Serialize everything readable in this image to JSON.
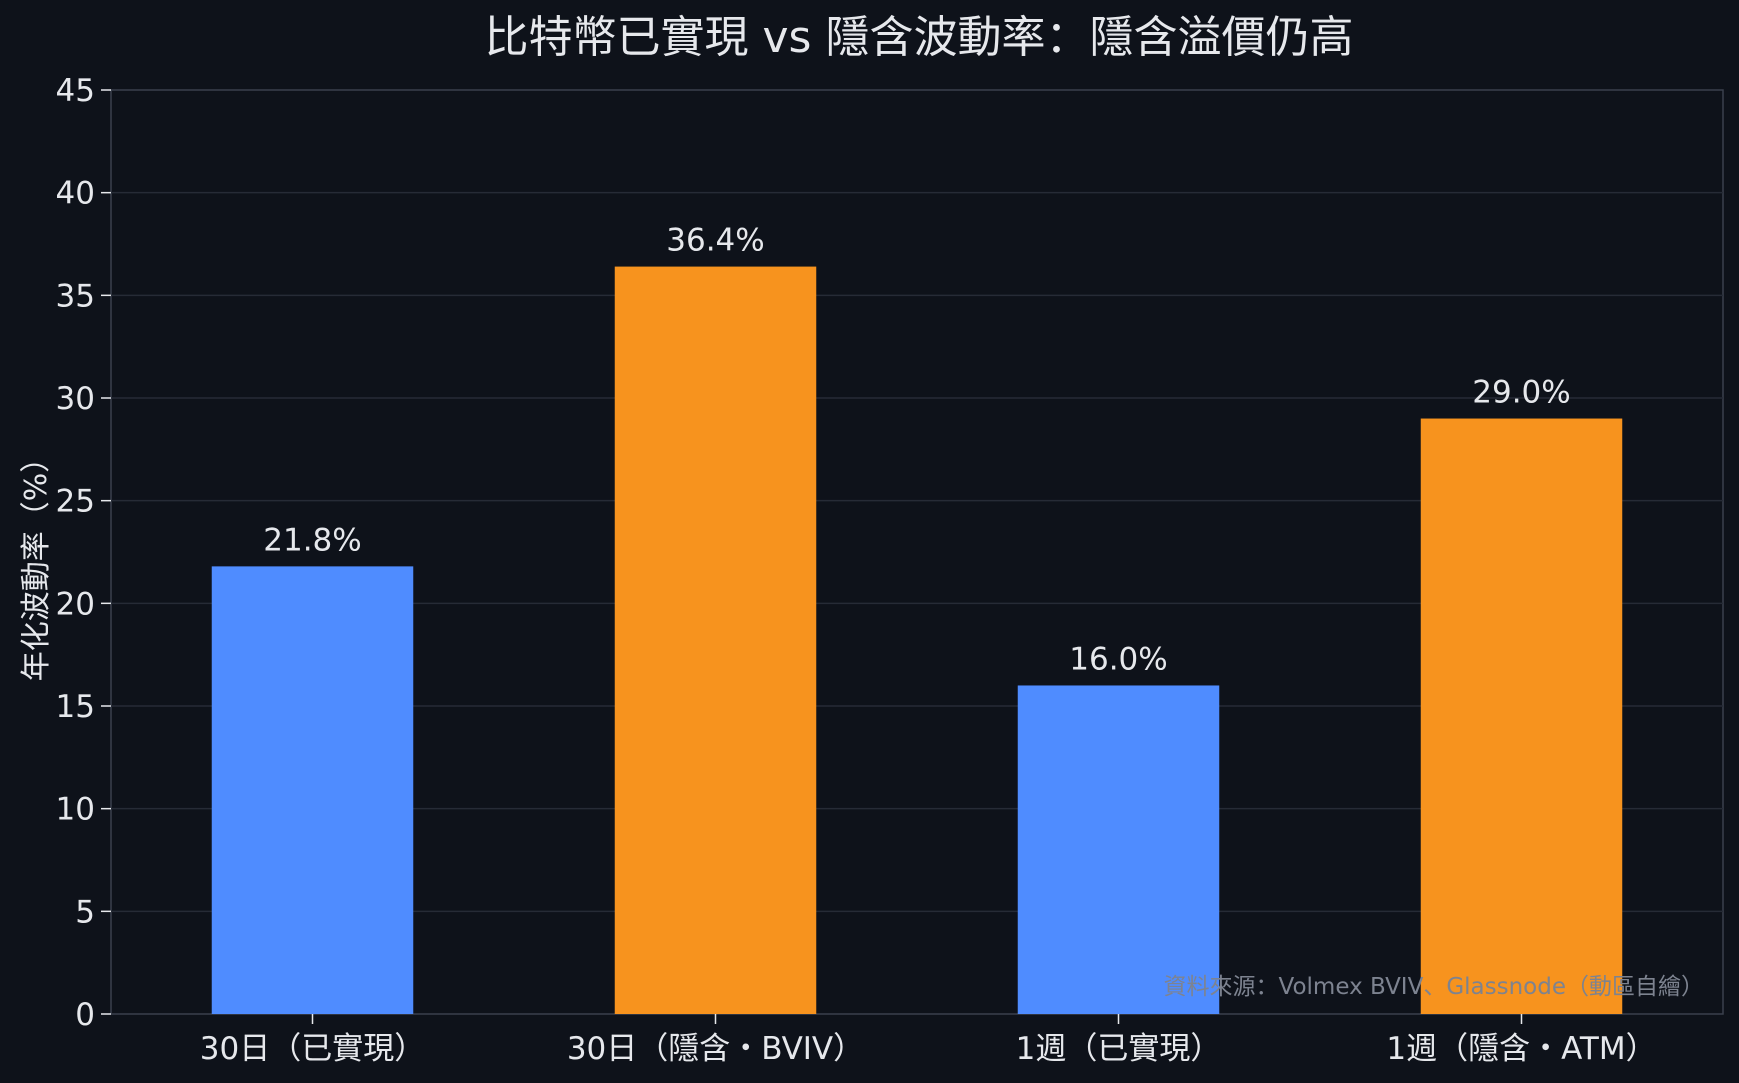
{
  "chart_data": {
    "type": "bar",
    "title": "比特幣已實現 vs 隱含波動率：隱含溢價仍高",
    "xlabel": "",
    "ylabel": "年化波動率（%）",
    "categories": [
      "30日（已實現）",
      "30日（隱含・BVIV）",
      "1週（已實現）",
      "1週（隱含・ATM）"
    ],
    "values": [
      21.8,
      36.4,
      16.0,
      29.0
    ],
    "value_labels": [
      "21.8%",
      "36.4%",
      "16.0%",
      "29.0%"
    ],
    "bar_colors": [
      "#4f8cff",
      "#f7931e",
      "#4f8cff",
      "#f7931e"
    ],
    "ylim": [
      0,
      45
    ],
    "yticks": [
      0,
      5,
      10,
      15,
      20,
      25,
      30,
      35,
      40,
      45
    ],
    "grid": true,
    "legend": "none",
    "annotation": "資料來源：Volmex BVIV、Glassnode（動區自繪）"
  },
  "colors": {
    "background": "#0e121a",
    "text": "#e6e8ec",
    "grid": "#262b36",
    "axis": "#3a404c",
    "annotation": "#7d8390"
  }
}
